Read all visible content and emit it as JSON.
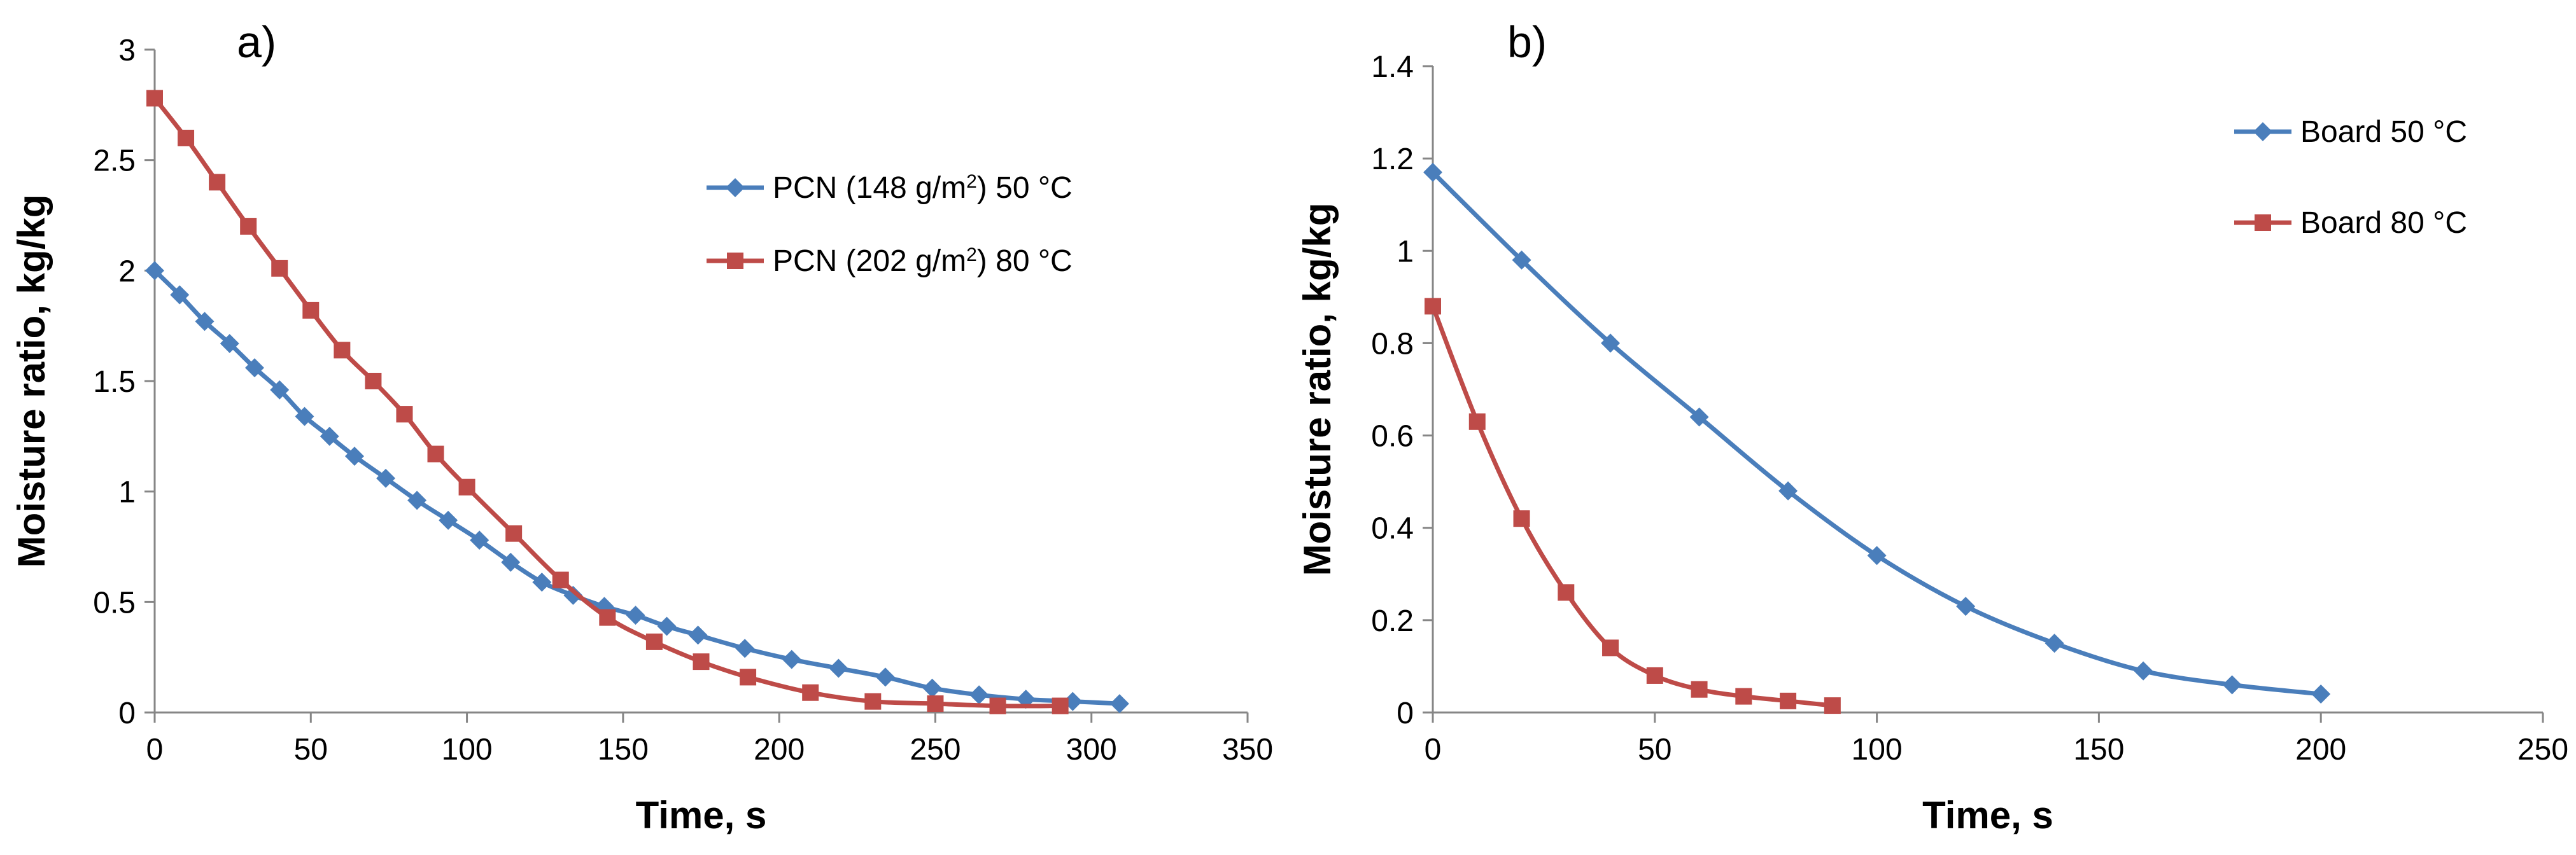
{
  "colors": {
    "series1": "#4a7ebb",
    "series2": "#be4b48",
    "axis": "#868686",
    "text": "#000000"
  },
  "chart_data": [
    {
      "type": "line",
      "panel_label": "a)",
      "xlabel": "Time, s",
      "ylabel": "Moisture ratio, kg/kg",
      "xlim": [
        0,
        350
      ],
      "ylim": [
        0,
        3
      ],
      "xticks": [
        0,
        50,
        100,
        150,
        200,
        250,
        300,
        350
      ],
      "yticks": [
        0,
        0.5,
        1,
        1.5,
        2,
        2.5,
        3
      ],
      "legend_position": "upper-right",
      "series": [
        {
          "name": "PCN (148 g/m²) 50 °C",
          "legend_parts": [
            "PCN (148 g/m",
            "2",
            ") 50 °C"
          ],
          "marker": "diamond",
          "color": "#4a7ebb",
          "x": [
            0,
            8,
            16,
            24,
            32,
            40,
            48,
            56,
            64,
            74,
            84,
            94,
            104,
            114,
            124,
            134,
            144,
            154,
            164,
            174,
            189,
            204,
            219,
            234,
            249,
            264,
            279,
            294,
            309
          ],
          "y": [
            2.0,
            1.89,
            1.77,
            1.67,
            1.56,
            1.46,
            1.34,
            1.25,
            1.16,
            1.06,
            0.96,
            0.87,
            0.78,
            0.68,
            0.59,
            0.53,
            0.48,
            0.44,
            0.39,
            0.35,
            0.29,
            0.24,
            0.2,
            0.16,
            0.11,
            0.08,
            0.06,
            0.05,
            0.04
          ]
        },
        {
          "name": "PCN (202 g/m²) 80 °C",
          "legend_parts": [
            "PCN (202 g/m",
            "2",
            ") 80 °C"
          ],
          "marker": "square",
          "color": "#be4b48",
          "x": [
            0,
            10,
            20,
            30,
            40,
            50,
            60,
            70,
            80,
            90,
            100,
            115,
            130,
            145,
            160,
            175,
            190,
            210,
            230,
            250,
            270,
            290
          ],
          "y": [
            2.78,
            2.6,
            2.4,
            2.2,
            2.01,
            1.82,
            1.64,
            1.5,
            1.35,
            1.17,
            1.02,
            0.81,
            0.6,
            0.43,
            0.32,
            0.23,
            0.16,
            0.09,
            0.05,
            0.04,
            0.03,
            0.03
          ]
        }
      ]
    },
    {
      "type": "line",
      "panel_label": "b)",
      "xlabel": "Time, s",
      "ylabel": "Moisture ratio, kg/kg",
      "xlim": [
        0,
        250
      ],
      "ylim": [
        0,
        1.4
      ],
      "xticks": [
        0,
        50,
        100,
        150,
        200,
        250
      ],
      "yticks": [
        0,
        0.2,
        0.4,
        0.6,
        0.8,
        1,
        1.2,
        1.4
      ],
      "legend_position": "upper-right",
      "series": [
        {
          "name": "Board 50 °C",
          "legend_parts": [
            "Board 50 °C"
          ],
          "marker": "diamond",
          "color": "#4a7ebb",
          "x": [
            0,
            20,
            40,
            60,
            80,
            100,
            120,
            140,
            160,
            180,
            200
          ],
          "y": [
            1.17,
            0.98,
            0.8,
            0.64,
            0.48,
            0.34,
            0.23,
            0.15,
            0.09,
            0.06,
            0.04
          ]
        },
        {
          "name": "Board 80 °C",
          "legend_parts": [
            "Board 80 °C"
          ],
          "marker": "square",
          "color": "#be4b48",
          "x": [
            0,
            10,
            20,
            30,
            40,
            50,
            60,
            70,
            80,
            90
          ],
          "y": [
            0.88,
            0.63,
            0.42,
            0.26,
            0.14,
            0.08,
            0.05,
            0.035,
            0.025,
            0.015
          ]
        }
      ]
    }
  ]
}
